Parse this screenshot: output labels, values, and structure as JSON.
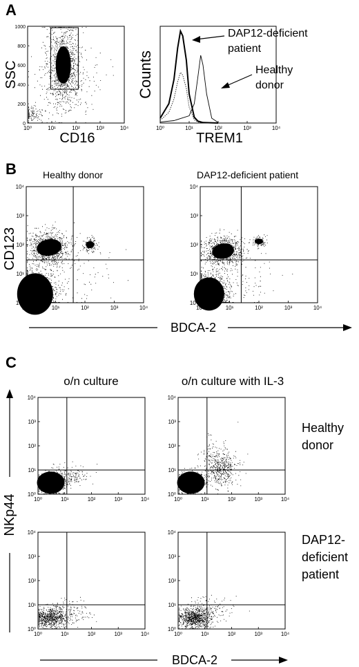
{
  "panel_labels": {
    "a": "A",
    "b": "B",
    "c": "C"
  },
  "panel_a": {
    "scatter": {
      "xlabel": "CD16",
      "ylabel": "SSC",
      "xticks": [
        "10⁰",
        "10¹",
        "10²",
        "10³",
        "10⁴"
      ],
      "yticks": [
        "0",
        "200",
        "400",
        "600",
        "800",
        "1000"
      ]
    },
    "histogram": {
      "xlabel": "TREM1",
      "ylabel": "Counts",
      "xticks": [
        "10⁰",
        "10¹",
        "10²",
        "10³",
        "10⁴"
      ],
      "annot_patient": [
        "DAP12-deficient",
        "patient"
      ],
      "annot_donor": [
        "Healthy",
        "donor"
      ]
    }
  },
  "panel_b": {
    "left_title": "Healthy donor",
    "right_title": "DAP12-deficient patient",
    "ylabel": "CD123",
    "xlabel": "BDCA-2",
    "ticks": [
      "10⁰",
      "10¹",
      "10²",
      "10³",
      "10⁴"
    ]
  },
  "panel_c": {
    "col_titles": [
      "o/n culture",
      "o/n culture with IL-3"
    ],
    "row_labels": [
      [
        "Healthy",
        "donor"
      ],
      [
        "DAP12-",
        "deficient",
        "patient"
      ]
    ],
    "ylabel": "NKp44",
    "xlabel": "BDCA-2",
    "ticks": [
      "10⁰",
      "10¹",
      "10²",
      "10³",
      "10⁴"
    ]
  },
  "chart_data": [
    {
      "type": "scatter",
      "title": "",
      "xlabel": "CD16",
      "ylabel": "SSC",
      "x_scale": "log",
      "xlim": [
        1,
        10000
      ],
      "ylim": [
        0,
        1000
      ],
      "gate": {
        "x": [
          9,
          125
        ],
        "y": [
          350,
          1000
        ]
      },
      "clusters": [
        {
          "x": 30,
          "y": 600
        },
        {
          "x": 1.3,
          "y": 90
        }
      ]
    },
    {
      "type": "line",
      "title": "",
      "xlabel": "TREM1",
      "ylabel": "Counts",
      "x_scale": "log",
      "xlim": [
        1,
        10000
      ],
      "series": [
        {
          "name": "DAP12-deficient patient",
          "x": [
            1,
            2,
            3,
            4,
            5,
            6,
            8,
            10,
            15,
            20,
            30,
            100
          ],
          "y": [
            10,
            40,
            90,
            155,
            190,
            180,
            130,
            60,
            12,
            4,
            1,
            0
          ]
        },
        {
          "name": "Healthy donor",
          "x": [
            1,
            3,
            10,
            15,
            20,
            25,
            30,
            40,
            60,
            100
          ],
          "y": [
            2,
            5,
            15,
            40,
            95,
            140,
            120,
            60,
            10,
            1
          ]
        }
      ]
    },
    {
      "type": "scatter",
      "title": "Healthy donor",
      "xlabel": "BDCA-2",
      "ylabel": "CD123",
      "x_scale": "log",
      "y_scale": "log",
      "xlim": [
        1,
        10000
      ],
      "ylim": [
        1,
        10000
      ],
      "quadrant": {
        "x": 40,
        "y": 30
      }
    },
    {
      "type": "scatter",
      "title": "DAP12-deficient patient",
      "xlabel": "BDCA-2",
      "ylabel": "CD123",
      "x_scale": "log",
      "y_scale": "log",
      "xlim": [
        1,
        10000
      ],
      "ylim": [
        1,
        10000
      ],
      "quadrant": {
        "x": 25,
        "y": 30
      }
    },
    {
      "type": "scatter",
      "title": "o/n culture",
      "xlabel": "BDCA-2",
      "ylabel": "NKp44",
      "x_scale": "log",
      "y_scale": "log",
      "xlim": [
        1,
        10000
      ],
      "ylim": [
        1,
        10000
      ],
      "quadrant": {
        "x": 12,
        "y": 10
      }
    },
    {
      "type": "scatter",
      "title": "o/n culture with IL-3",
      "xlabel": "BDCA-2",
      "ylabel": "NKp44",
      "x_scale": "log",
      "y_scale": "log",
      "xlim": [
        1,
        10000
      ],
      "ylim": [
        1,
        10000
      ],
      "quadrant": {
        "x": 12,
        "y": 10
      }
    },
    {
      "type": "scatter",
      "title": "o/n culture",
      "xlabel": "BDCA-2",
      "ylabel": "NKp44",
      "x_scale": "log",
      "y_scale": "log",
      "xlim": [
        1,
        10000
      ],
      "ylim": [
        1,
        10000
      ],
      "quadrant": {
        "x": 12,
        "y": 10
      }
    },
    {
      "type": "scatter",
      "title": "o/n culture with IL-3",
      "xlabel": "BDCA-2",
      "ylabel": "NKp44",
      "x_scale": "log",
      "y_scale": "log",
      "xlim": [
        1,
        10000
      ],
      "ylim": [
        1,
        10000
      ],
      "quadrant": {
        "x": 12,
        "y": 10
      }
    }
  ]
}
